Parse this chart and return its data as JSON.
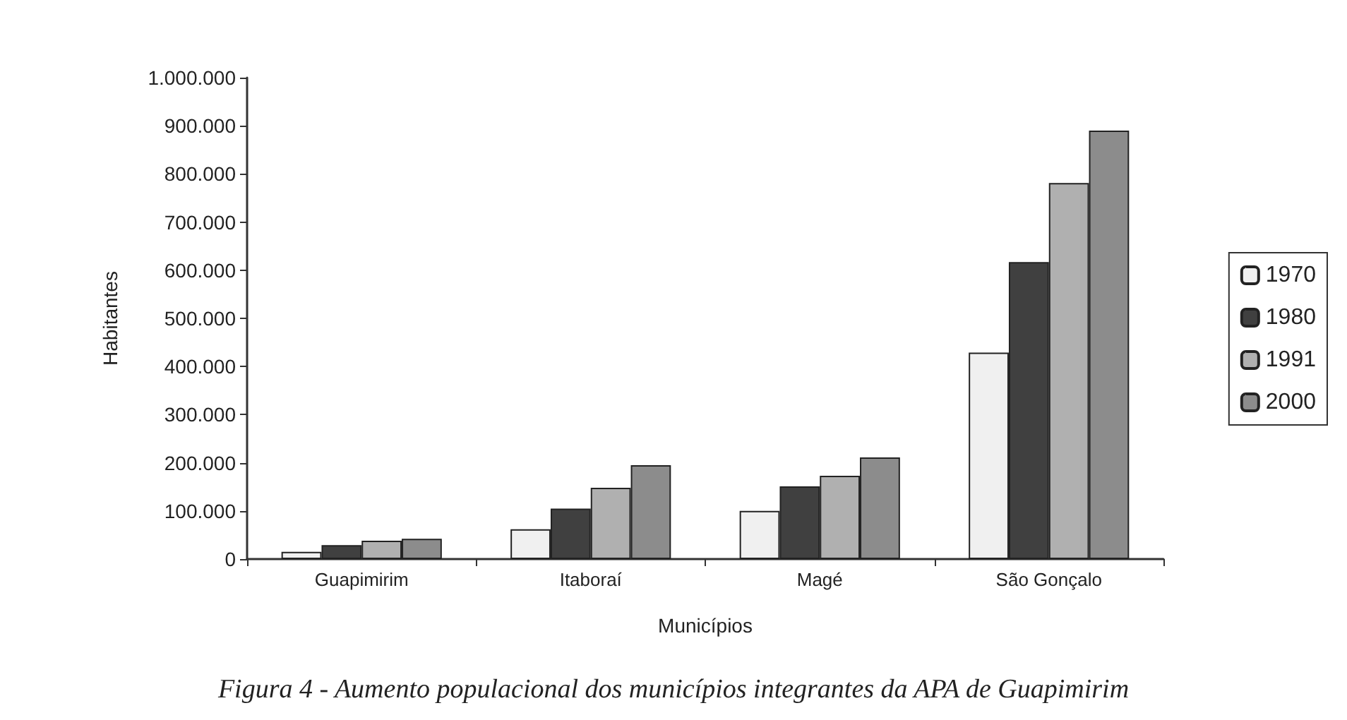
{
  "chart_data": {
    "type": "bar",
    "xlabel": "Municípios",
    "ylabel": "Habitantes",
    "categories": [
      "Guapimirim",
      "Itaboraí",
      "Magé",
      "São Gonçalo"
    ],
    "series": [
      {
        "name": "1970",
        "color": "#f0f0f0",
        "values": [
          15000,
          62000,
          100000,
          429000
        ]
      },
      {
        "name": "1980",
        "color": "#404040",
        "values": [
          29000,
          105000,
          151000,
          617000
        ]
      },
      {
        "name": "1991",
        "color": "#b0b0b0",
        "values": [
          38000,
          148000,
          173000,
          781000
        ]
      },
      {
        "name": "2000",
        "color": "#8c8c8c",
        "values": [
          42000,
          195000,
          211000,
          890000
        ]
      }
    ],
    "ylim": [
      0,
      1000000
    ],
    "yticks": [
      {
        "value": 0,
        "label": "0"
      },
      {
        "value": 100000,
        "label": "100.000"
      },
      {
        "value": 200000,
        "label": "200.000"
      },
      {
        "value": 300000,
        "label": "300.000"
      },
      {
        "value": 400000,
        "label": "400.000"
      },
      {
        "value": 500000,
        "label": "500.000"
      },
      {
        "value": 600000,
        "label": "600.000"
      },
      {
        "value": 700000,
        "label": "700.000"
      },
      {
        "value": 800000,
        "label": "800.000"
      },
      {
        "value": 900000,
        "label": "900.000"
      },
      {
        "value": 1000000,
        "label": "1.000.000"
      }
    ],
    "grid": false,
    "legend": "right",
    "annotations": [
      "Figura 4 - Aumento populacional dos municípios integrantes da APA de Guapimirim"
    ]
  }
}
